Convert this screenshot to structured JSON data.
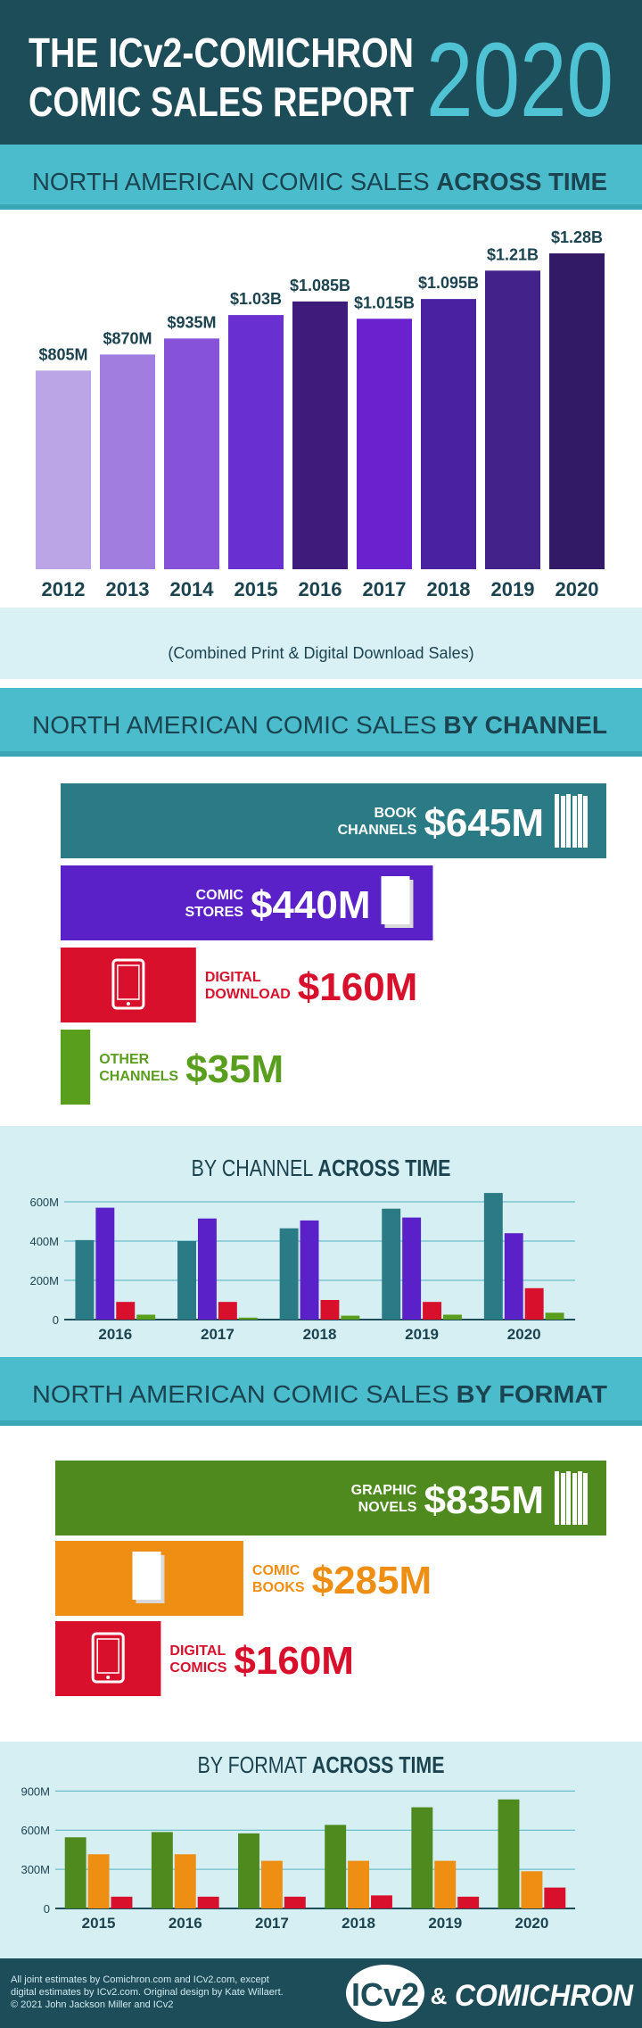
{
  "header": {
    "title_lines": [
      "THE ICv2-COMICHRON",
      "COMIC SALES REPORT"
    ],
    "year": "2020"
  },
  "chart_data": [
    {
      "type": "bar",
      "title": "NORTH AMERICAN COMIC SALES",
      "title_emphasis": "ACROSS TIME",
      "subtitle": "(Combined Print & Digital Download Sales)",
      "categories": [
        "2012",
        "2013",
        "2014",
        "2015",
        "2016",
        "2017",
        "2018",
        "2019",
        "2020"
      ],
      "values": [
        805,
        870,
        935,
        1030,
        1085,
        1015,
        1095,
        1210,
        1280
      ],
      "value_labels": [
        "$805M",
        "$870M",
        "$935M",
        "$1.03B",
        "$1.085B",
        "$1.015B",
        "$1.095B",
        "$1.21B",
        "$1.28B"
      ],
      "colors": [
        "#bba5e6",
        "#a07ddf",
        "#8652d8",
        "#6a2fd0",
        "#3f1b7c",
        "#6a22cf",
        "#4a21a0",
        "#43238a",
        "#331a66"
      ]
    },
    {
      "type": "hbar",
      "title": "NORTH AMERICAN COMIC SALES",
      "title_emphasis": "BY CHANNEL",
      "categories": [
        [
          "BOOK",
          "CHANNELS"
        ],
        [
          "COMIC",
          "STORES"
        ],
        [
          "DIGITAL",
          "DOWNLOAD"
        ],
        [
          "OTHER",
          "CHANNELS"
        ]
      ],
      "values": [
        645,
        440,
        160,
        35
      ],
      "value_labels": [
        "$645M",
        "$440M",
        "$160M",
        "$35M"
      ],
      "colors": [
        "#2a7b86",
        "#5b21c9",
        "#d8102b",
        "#5a9e1e"
      ]
    },
    {
      "type": "grouped-bar",
      "title": "BY CHANNEL",
      "title_emphasis": "ACROSS TIME",
      "categories": [
        "2016",
        "2017",
        "2018",
        "2019",
        "2020"
      ],
      "series": [
        {
          "color": "#2a7b86",
          "values": [
            405,
            400,
            465,
            565,
            645
          ]
        },
        {
          "color": "#5b21c9",
          "values": [
            570,
            515,
            505,
            520,
            440
          ]
        },
        {
          "color": "#d8102b",
          "values": [
            90,
            90,
            100,
            90,
            160
          ]
        },
        {
          "color": "#5a9e1e",
          "values": [
            25,
            10,
            20,
            25,
            35
          ]
        }
      ],
      "ylim": [
        0,
        650
      ],
      "yticks": [
        0,
        {
          "value": 200,
          "label": "200M"
        },
        {
          "value": 400,
          "label": "400M"
        },
        {
          "value": 600,
          "label": "600M"
        }
      ],
      "grid": true
    },
    {
      "type": "hbar",
      "title": "NORTH AMERICAN COMIC SALES",
      "title_emphasis": "BY FORMAT",
      "categories": [
        [
          "GRAPHIC",
          "NOVELS"
        ],
        [
          "COMIC",
          "BOOKS"
        ],
        [
          "DIGITAL",
          "COMICS"
        ]
      ],
      "values": [
        835,
        285,
        160
      ],
      "value_labels": [
        "$835M",
        "$285M",
        "$160M"
      ],
      "colors": [
        "#4e8a1e",
        "#ee8e13",
        "#d8102b"
      ]
    },
    {
      "type": "grouped-bar",
      "title": "BY FORMAT",
      "title_emphasis": "ACROSS TIME",
      "categories": [
        "2015",
        "2016",
        "2017",
        "2018",
        "2019",
        "2020"
      ],
      "series": [
        {
          "color": "#4e8a1e",
          "values": [
            545,
            585,
            575,
            640,
            775,
            835
          ]
        },
        {
          "color": "#ee8e13",
          "values": [
            415,
            415,
            365,
            365,
            365,
            285
          ]
        },
        {
          "color": "#d8102b",
          "values": [
            90,
            90,
            90,
            100,
            90,
            160
          ]
        }
      ],
      "ylim": [
        0,
        950
      ],
      "yticks": [
        0,
        {
          "value": 300,
          "label": "300M"
        },
        {
          "value": 600,
          "label": "600M"
        },
        {
          "value": 900,
          "label": "900M"
        }
      ],
      "grid": true
    }
  ],
  "footer": {
    "credits": [
      "All joint estimates by Comichron.com and ICv2.com, except",
      "digital estimates by ICv2.com.  Original design by Kate Willaert.",
      "© 2021 John Jackson Miller and ICv2"
    ],
    "logos": [
      "ICv2",
      "&",
      "COMICHRON"
    ]
  }
}
